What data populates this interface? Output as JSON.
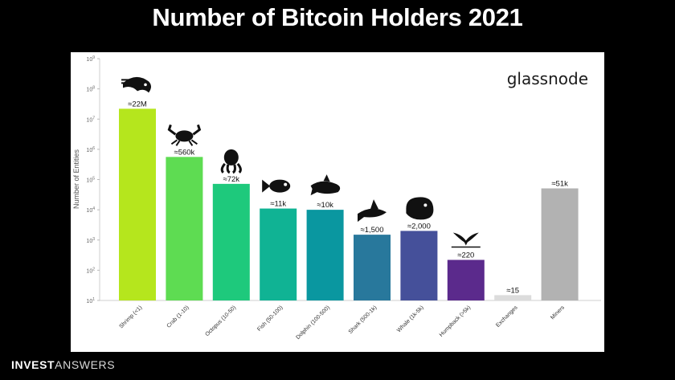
{
  "title": "Number of Bitcoin Holders 2021",
  "watermark": "glassnode",
  "footer": {
    "brand_bold": "INVEST",
    "brand_light": "ANSWERS"
  },
  "chart_data": {
    "type": "bar",
    "title": "Number of Bitcoin Holders 2021",
    "ylabel": "Number of Entities",
    "xlabel": "",
    "y_scale": "log",
    "ylim": [
      10,
      1000000000
    ],
    "y_ticks": [
      {
        "value": 10,
        "base": "10",
        "exp": "1"
      },
      {
        "value": 100,
        "base": "10",
        "exp": "2"
      },
      {
        "value": 1000,
        "base": "10",
        "exp": "3"
      },
      {
        "value": 10000,
        "base": "10",
        "exp": "4"
      },
      {
        "value": 100000,
        "base": "10",
        "exp": "5"
      },
      {
        "value": 1000000,
        "base": "10",
        "exp": "6"
      },
      {
        "value": 10000000,
        "base": "10",
        "exp": "7"
      },
      {
        "value": 100000000,
        "base": "10",
        "exp": "8"
      },
      {
        "value": 1000000000,
        "base": "10",
        "exp": "9"
      }
    ],
    "grid": false,
    "categories": [
      "Shrimp (<1)",
      "Crab (1-10)",
      "Octopus (10-50)",
      "Fish (50-100)",
      "Dolphin (100-500)",
      "Shark (500-1k)",
      "Whale (1k-5k)",
      "Humpback (>5k)",
      "Exchanges",
      "Miners"
    ],
    "values": [
      22000000,
      560000,
      72000,
      11000,
      10000,
      1500,
      2000,
      220,
      15,
      51000
    ],
    "value_labels": [
      "≈22M",
      "≈560k",
      "≈72k",
      "≈11k",
      "≈10k",
      "≈1,500",
      "≈2,000",
      "≈220",
      "≈15",
      "≈51k"
    ],
    "bar_colors": [
      "#b5e61d",
      "#5edc52",
      "#1ec97c",
      "#10b394",
      "#0a97a0",
      "#28789c",
      "#45509a",
      "#5b2a8c",
      "#dcdcdc",
      "#b2b2b2"
    ],
    "icons": [
      "shrimp-icon",
      "crab-icon",
      "octopus-icon",
      "fish-icon",
      "dolphin-icon",
      "shark-icon",
      "whale-icon",
      "humpback-tail-icon",
      "",
      ""
    ]
  }
}
